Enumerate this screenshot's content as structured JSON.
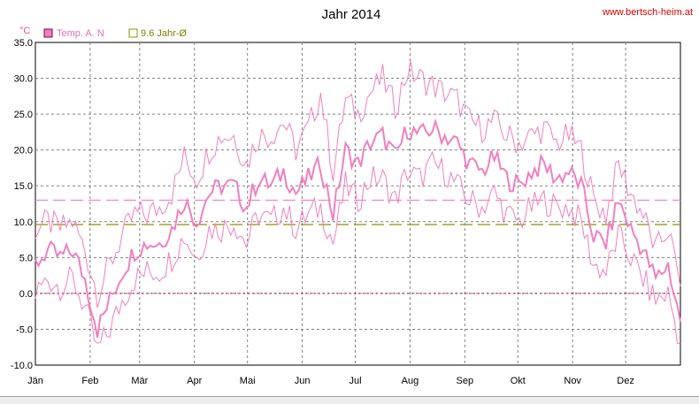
{
  "chart_data": {
    "type": "line",
    "title": "Jahr 2014",
    "watermark": "www.bertsch-heim.at",
    "ylabel": "°C",
    "ylim": [
      -10,
      35
    ],
    "yticks": [
      "35.0",
      "30.0",
      "25.0",
      "20.0",
      "15.0",
      "10.0",
      "5.0",
      "0.0",
      "-5.0",
      "-10.0"
    ],
    "ytick_values": [
      35,
      30,
      25,
      20,
      15,
      10,
      5,
      0,
      -5,
      -10
    ],
    "x_labels": [
      "Jän",
      "Feb",
      "Mär",
      "Apr",
      "Mai",
      "Jun",
      "Jul",
      "Aug",
      "Sep",
      "Okt",
      "Nov",
      "Dez"
    ],
    "grid": true,
    "legend_position": "top-left",
    "colors": {
      "temp": "#f080c0",
      "average": "#909000",
      "zero": "#c00040",
      "swatch_border": "#800040"
    },
    "series": [
      {
        "name": "Temp. A. N",
        "style": "mean with daily min/max band",
        "x_weeks": [
          0,
          1,
          2,
          3,
          4,
          5,
          6,
          7,
          8,
          9,
          10,
          11,
          12,
          13,
          14,
          15,
          16,
          17,
          18,
          19,
          20,
          21,
          22,
          23,
          24,
          25,
          26,
          27,
          28,
          29,
          30,
          31,
          32,
          33,
          34,
          35,
          36,
          37,
          38,
          39,
          40,
          41,
          42,
          43,
          44,
          45,
          46,
          47,
          48,
          49,
          50,
          51,
          52
        ],
        "mean": [
          4,
          6,
          5,
          6,
          2,
          -5,
          -1,
          3,
          6,
          7,
          7,
          9,
          13,
          10,
          14,
          15,
          15,
          12,
          16,
          15,
          17,
          14,
          16,
          18,
          11,
          20,
          18,
          21,
          22,
          19,
          23,
          22,
          23,
          22,
          21,
          18,
          17,
          19,
          16,
          15,
          17,
          18,
          16,
          17,
          15,
          8,
          7,
          13,
          9,
          6,
          2,
          4,
          -4
        ],
        "max": [
          9,
          10,
          9,
          10,
          6,
          0,
          4,
          8,
          11,
          11,
          12,
          14,
          19,
          16,
          20,
          22,
          22,
          18,
          22,
          22,
          24,
          20,
          23,
          28,
          17,
          27,
          25,
          28,
          30,
          26,
          31,
          30,
          29,
          28,
          27,
          24,
          23,
          24,
          22,
          21,
          22,
          23,
          21,
          22,
          20,
          13,
          11,
          18,
          14,
          11,
          6,
          9,
          1
        ],
        "min": [
          0,
          2,
          1,
          2,
          -2,
          -8,
          -5,
          -1,
          2,
          3,
          3,
          5,
          8,
          5,
          9,
          9,
          10,
          7,
          11,
          10,
          12,
          9,
          11,
          12,
          7,
          15,
          13,
          16,
          16,
          13,
          17,
          16,
          18,
          17,
          15,
          13,
          12,
          14,
          11,
          10,
          12,
          13,
          12,
          12,
          10,
          4,
          3,
          8,
          5,
          2,
          -1,
          0,
          -7
        ]
      },
      {
        "name": "9.6 Jahr-Ø",
        "value": 9.6,
        "style": "dashed horizontal"
      },
      {
        "name": "",
        "value": 13.0,
        "style": "dashed horizontal (mean level)"
      }
    ]
  }
}
